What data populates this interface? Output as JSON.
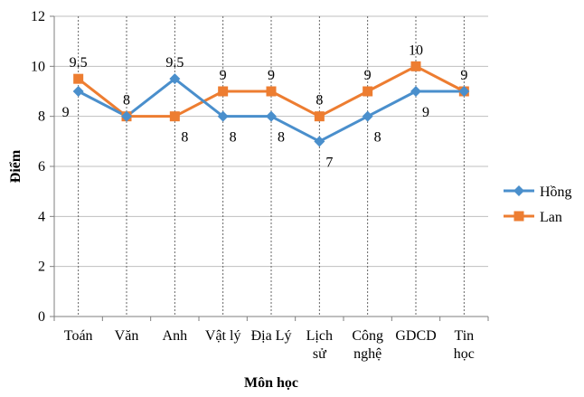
{
  "chart_data": {
    "type": "line",
    "categories": [
      [
        "Toán"
      ],
      [
        "Văn"
      ],
      [
        "Anh"
      ],
      [
        "Vật lý"
      ],
      [
        "Địa Lý"
      ],
      [
        "Lịch",
        "sử"
      ],
      [
        "Công",
        "nghệ"
      ],
      [
        "GDCD"
      ],
      [
        "Tin",
        "học"
      ]
    ],
    "series": [
      {
        "name": "Hồng",
        "values": [
          9,
          8,
          9.5,
          8,
          8,
          7,
          8,
          9,
          9
        ],
        "labels": [
          "9",
          "8",
          "9.5",
          "8",
          "8",
          "7",
          "8",
          "9",
          "9"
        ],
        "color": "#4a8fcc",
        "marker": "diamond"
      },
      {
        "name": "Lan",
        "values": [
          9.5,
          8,
          8,
          9,
          9,
          8,
          9,
          10,
          9
        ],
        "labels": [
          "9.5",
          "8",
          "8",
          "9",
          "9",
          "8",
          "9",
          "10",
          "9"
        ],
        "color": "#ed7d31",
        "marker": "square"
      }
    ],
    "xlabel": "Môn học",
    "ylabel": "Điểm",
    "ylim": [
      0,
      12
    ],
    "yticks": [
      0,
      2,
      4,
      6,
      8,
      10,
      12
    ],
    "grid": "horizontal solid, vertical dotted",
    "legend": "right"
  }
}
